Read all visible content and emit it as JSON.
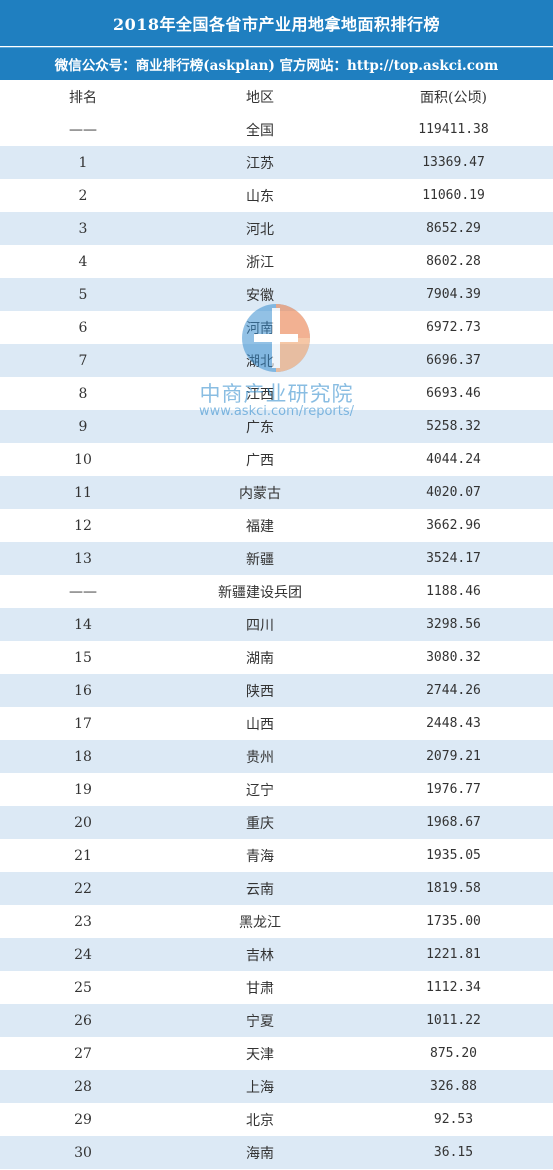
{
  "title": "2018年全国各省市产业用地拿地面积排行榜",
  "subtitle": "微信公众号：商业排行榜(askplan) 官方网站：http://top.askci.com",
  "table": {
    "headers": [
      "排名",
      "地区",
      "面积(公顷)"
    ],
    "rows": [
      [
        "——",
        "全国",
        "119411.38"
      ],
      [
        "1",
        "江苏",
        "13369.47"
      ],
      [
        "2",
        "山东",
        "11060.19"
      ],
      [
        "3",
        "河北",
        "8652.29"
      ],
      [
        "4",
        "浙江",
        "8602.28"
      ],
      [
        "5",
        "安徽",
        "7904.39"
      ],
      [
        "6",
        "河南",
        "6972.73"
      ],
      [
        "7",
        "湖北",
        "6696.37"
      ],
      [
        "8",
        "江西",
        "6693.46"
      ],
      [
        "9",
        "广东",
        "5258.32"
      ],
      [
        "10",
        "广西",
        "4044.24"
      ],
      [
        "11",
        "内蒙古",
        "4020.07"
      ],
      [
        "12",
        "福建",
        "3662.96"
      ],
      [
        "13",
        "新疆",
        "3524.17"
      ],
      [
        "——",
        "新疆建设兵团",
        "1188.46"
      ],
      [
        "14",
        "四川",
        "3298.56"
      ],
      [
        "15",
        "湖南",
        "3080.32"
      ],
      [
        "16",
        "陕西",
        "2744.26"
      ],
      [
        "17",
        "山西",
        "2448.43"
      ],
      [
        "18",
        "贵州",
        "2079.21"
      ],
      [
        "19",
        "辽宁",
        "1976.77"
      ],
      [
        "20",
        "重庆",
        "1968.67"
      ],
      [
        "21",
        "青海",
        "1935.05"
      ],
      [
        "22",
        "云南",
        "1819.58"
      ],
      [
        "23",
        "黑龙江",
        "1735.00"
      ],
      [
        "24",
        "吉林",
        "1221.81"
      ],
      [
        "25",
        "甘肃",
        "1112.34"
      ],
      [
        "26",
        "宁夏",
        "1011.22"
      ],
      [
        "27",
        "天津",
        "875.20"
      ],
      [
        "28",
        "上海",
        "326.88"
      ],
      [
        "29",
        "北京",
        "92.53"
      ],
      [
        "30",
        "海南",
        "36.15"
      ]
    ]
  },
  "watermark": {
    "name": "中商产业研究院",
    "url": "www.askci.com/reports/"
  },
  "colors": {
    "header_bg": "#1f7fc0",
    "stripe": "#dce9f5"
  }
}
